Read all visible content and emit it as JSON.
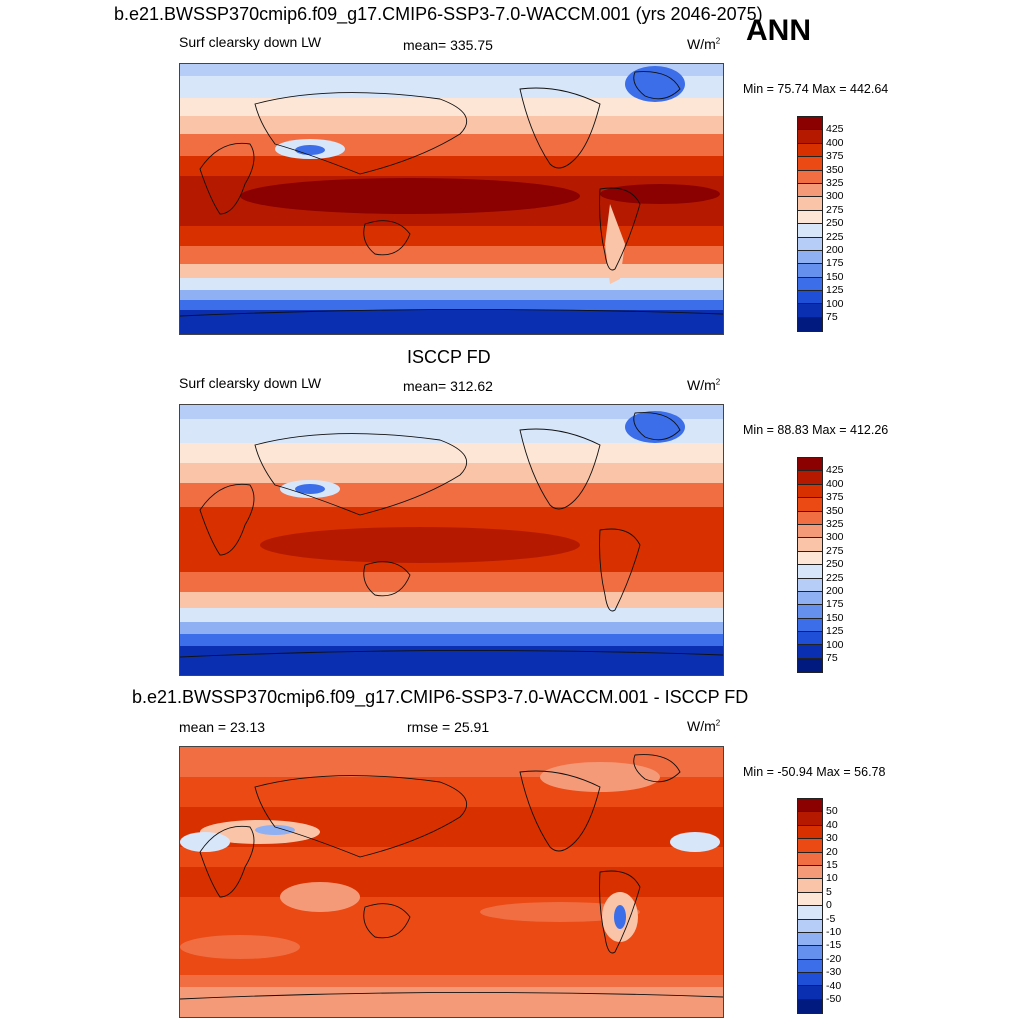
{
  "header": {
    "title": "b.e21.BWSSP370cmip6.f09_g17.CMIP6-SSP3-7.0-WACCM.001 (yrs 2046-2075)",
    "season": "ANN"
  },
  "panels": [
    {
      "title": "",
      "left": "Surf clearsky down LW",
      "center": "mean= 335.75",
      "units_base": "W/m",
      "units_exp": "2",
      "minmax": "Min =  75.74 Max = 442.64",
      "levels": [
        "425",
        "400",
        "375",
        "350",
        "325",
        "300",
        "275",
        "250",
        "225",
        "200",
        "175",
        "150",
        "125",
        "100",
        "75"
      ],
      "colors": [
        "#8b0000",
        "#b51a00",
        "#d93000",
        "#eb4a14",
        "#f06e42",
        "#f59a78",
        "#f9c4a8",
        "#fde6d6",
        "#d8e6fa",
        "#b6cdf7",
        "#8fb0f2",
        "#6690ee",
        "#3b6ee8",
        "#1f4fd6",
        "#0a2fb0",
        "#001a80"
      ]
    },
    {
      "title": "ISCCP FD",
      "left": "Surf clearsky down LW",
      "center": "mean= 312.62",
      "units_base": "W/m",
      "units_exp": "2",
      "minmax": "Min =  88.83 Max = 412.26",
      "levels": [
        "425",
        "400",
        "375",
        "350",
        "325",
        "300",
        "275",
        "250",
        "225",
        "200",
        "175",
        "150",
        "125",
        "100",
        "75"
      ],
      "colors": [
        "#8b0000",
        "#b51a00",
        "#d93000",
        "#eb4a14",
        "#f06e42",
        "#f59a78",
        "#f9c4a8",
        "#fde6d6",
        "#d8e6fa",
        "#b6cdf7",
        "#8fb0f2",
        "#6690ee",
        "#3b6ee8",
        "#1f4fd6",
        "#0a2fb0",
        "#001a80"
      ]
    },
    {
      "title": "b.e21.BWSSP370cmip6.f09_g17.CMIP6-SSP3-7.0-WACCM.001 - ISCCP FD",
      "left": "mean =  23.13",
      "center": "rmse =  25.91",
      "units_base": "W/m",
      "units_exp": "2",
      "minmax": "Min = -50.94 Max =  56.78",
      "levels": [
        "50",
        "40",
        "30",
        "20",
        "15",
        "10",
        "5",
        "0",
        "-5",
        "-10",
        "-15",
        "-20",
        "-30",
        "-40",
        "-50"
      ],
      "colors": [
        "#8b0000",
        "#b51a00",
        "#d93000",
        "#eb4a14",
        "#f06e42",
        "#f59a78",
        "#f9c4a8",
        "#fde6d6",
        "#d8e6fa",
        "#b6cdf7",
        "#8fb0f2",
        "#6690ee",
        "#3b6ee8",
        "#1f4fd6",
        "#0a2fb0",
        "#001a80"
      ]
    }
  ]
}
